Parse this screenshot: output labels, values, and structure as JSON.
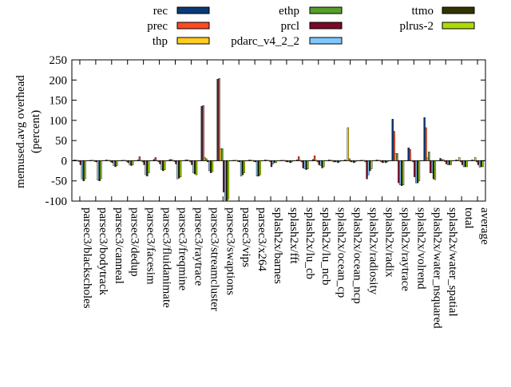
{
  "chart_data": {
    "type": "bar",
    "title": "",
    "xlabel": "",
    "ylabel_line1": "memused.avg overhead",
    "ylabel_line2": "(percent)",
    "ylim": [
      -100,
      250
    ],
    "yticks": [
      -100,
      -50,
      0,
      50,
      100,
      150,
      200,
      250
    ],
    "grid": false,
    "legend_position": "top",
    "categories": [
      "parsec3/blackscholes",
      "parsec3/bodytrack",
      "parsec3/canneal",
      "parsec3/dedup",
      "parsec3/facesim",
      "parsec3/fluidanimate",
      "parsec3/freqmine",
      "parsec3/raytrace",
      "parsec3/streamcluster",
      "parsec3/swaptions",
      "parsec3/vips",
      "parsec3/x264",
      "splash2x/barnes",
      "splash2x/fft",
      "splash2x/lu_cb",
      "splash2x/lu_ncb",
      "splash2x/ocean_cp",
      "splash2x/ocean_ncp",
      "splash2x/radiosity",
      "splash2x/radix",
      "splash2x/raytrace",
      "splash2x/volrend",
      "splash2x/water_nsquared",
      "splash2x/water_spatial",
      "total",
      "average"
    ],
    "series": [
      {
        "name": "rec",
        "color": "#0a3a78",
        "values": [
          2,
          1,
          2,
          1,
          2,
          3,
          3,
          2,
          135,
          202,
          1,
          2,
          2,
          1,
          2,
          3,
          2,
          2,
          1,
          2,
          103,
          32,
          107,
          6,
          2,
          2
        ]
      },
      {
        "name": "prec",
        "color": "#ff4a22",
        "values": [
          1,
          1,
          1,
          1,
          10,
          8,
          3,
          2,
          137,
          204,
          1,
          1,
          1,
          1,
          10,
          12,
          1,
          1,
          1,
          1,
          73,
          28,
          82,
          3,
          1,
          1
        ]
      },
      {
        "name": "thp",
        "color": "#ffcc22",
        "values": [
          1,
          1,
          1,
          1,
          1,
          1,
          1,
          1,
          8,
          30,
          1,
          1,
          1,
          1,
          1,
          1,
          1,
          82,
          1,
          1,
          18,
          1,
          7,
          3,
          8,
          8
        ]
      },
      {
        "name": "ethp",
        "color": "#55a02a",
        "values": [
          -2,
          -2,
          -3,
          -2,
          -3,
          -3,
          -2,
          -3,
          5,
          30,
          -2,
          -2,
          -2,
          -2,
          -3,
          -3,
          -3,
          5,
          -3,
          -3,
          18,
          -3,
          22,
          -2,
          -3,
          -3
        ]
      },
      {
        "name": "prcl",
        "color": "#7a0a28",
        "values": [
          -10,
          -3,
          -5,
          -5,
          -10,
          -8,
          -8,
          -10,
          -3,
          -78,
          -3,
          -3,
          -15,
          -3,
          -18,
          -10,
          -3,
          -3,
          -45,
          -5,
          -55,
          -40,
          -30,
          -8,
          -10,
          -10
        ]
      },
      {
        "name": "pdarc_v4_2_2",
        "color": "#7fc7ff",
        "values": [
          -45,
          -48,
          -12,
          -10,
          -35,
          -22,
          -45,
          -30,
          -25,
          -97,
          -38,
          -38,
          -8,
          -3,
          -20,
          -12,
          -3,
          -3,
          -35,
          -3,
          -60,
          -55,
          -30,
          -10,
          -15,
          -16
        ]
      },
      {
        "name": "ttmo",
        "color": "#333300",
        "values": [
          -50,
          -50,
          -15,
          -12,
          -38,
          -25,
          -43,
          -33,
          -30,
          -100,
          -35,
          -38,
          -5,
          -5,
          -22,
          -18,
          -5,
          -5,
          -25,
          -5,
          -62,
          -55,
          -45,
          -10,
          -15,
          -15
        ]
      },
      {
        "name": "plrus-2",
        "color": "#aadd00",
        "values": [
          -45,
          -45,
          -12,
          -10,
          -30,
          -22,
          -40,
          -35,
          -27,
          -95,
          -30,
          -35,
          -5,
          -3,
          -20,
          -15,
          -3,
          -3,
          -20,
          -3,
          -60,
          -50,
          -47,
          -10,
          -15,
          -15
        ]
      }
    ]
  }
}
